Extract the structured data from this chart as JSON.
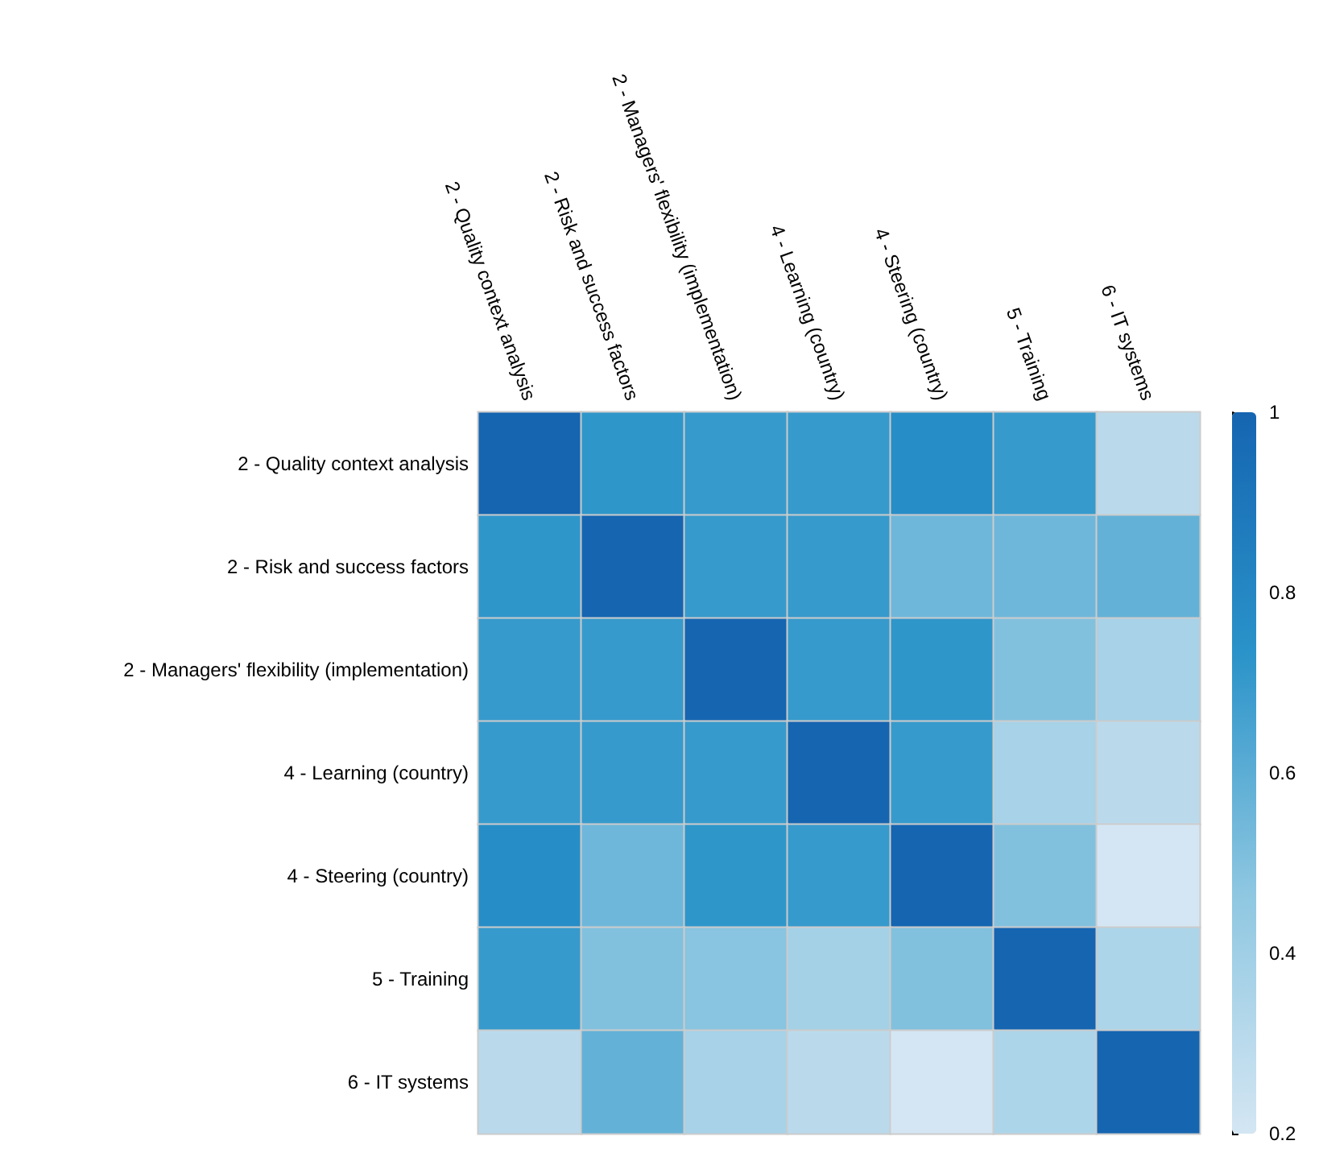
{
  "chart_data": {
    "type": "heatmap",
    "categories": [
      "2 - Quality context analysis",
      "2 - Risk and success factors",
      "2 - Managers' flexibility (implementation)",
      "4 - Learning (country)",
      "4 - Steering (country)",
      "5 - Training",
      "6 - IT systems"
    ],
    "y_categories": [
      "2 - Quality context analysis",
      "2 - Risk and success factors",
      "2 - Managers' flexibility (implementation)",
      "4 - Learning (country)",
      "4 - Steering (country)",
      "5 - Training",
      "6 - IT systems"
    ],
    "cells": [
      [
        1,
        0.72,
        0.7,
        0.7,
        0.77,
        0.7,
        0.3
      ],
      [
        0.72,
        1,
        0.7,
        0.7,
        0.55,
        0.55,
        0.58
      ],
      [
        0.7,
        0.7,
        1,
        0.7,
        0.72,
        0.5,
        0.37
      ],
      [
        0.7,
        0.7,
        0.7,
        1,
        0.7,
        0.37,
        0.3
      ],
      [
        0.77,
        0.55,
        0.72,
        0.7,
        1,
        0.5,
        0.2
      ],
      [
        0.7,
        0.5,
        0.48,
        0.38,
        0.5,
        1,
        0.35
      ],
      [
        0.3,
        0.58,
        0.37,
        0.3,
        0.2,
        0.35,
        1
      ]
    ],
    "clim": [
      0.2,
      1
    ],
    "cticks": [
      0.2,
      0.4,
      0.6,
      0.8,
      1
    ]
  }
}
